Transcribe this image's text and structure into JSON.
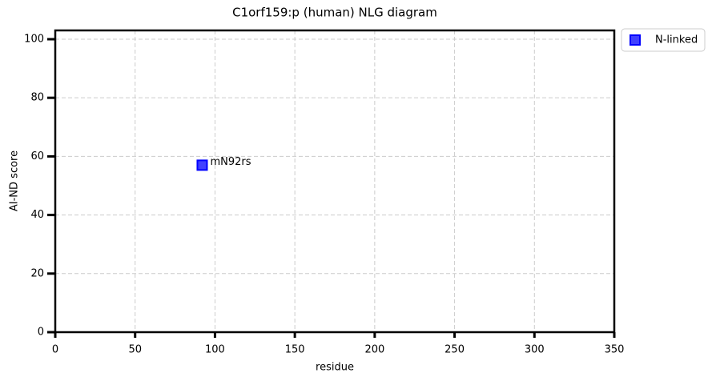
{
  "chart_data": {
    "type": "scatter",
    "title": "C1orf159:p (human) NLG diagram",
    "x_label": "residue",
    "y_label": "AI-ND score",
    "series": [
      {
        "name": "N-linked",
        "color": "#0000ff",
        "marker": "square",
        "x": [
          92
        ],
        "values": [
          57
        ],
        "labels": [
          "mN92rs"
        ]
      }
    ],
    "xlim": [
      0,
      350
    ],
    "ylim": [
      0,
      103
    ],
    "xticks": [
      0,
      50,
      100,
      150,
      200,
      250,
      300,
      350
    ],
    "yticks": [
      0,
      20,
      40,
      60,
      80,
      100
    ],
    "grid": true,
    "legend": "outside-upper-right"
  }
}
